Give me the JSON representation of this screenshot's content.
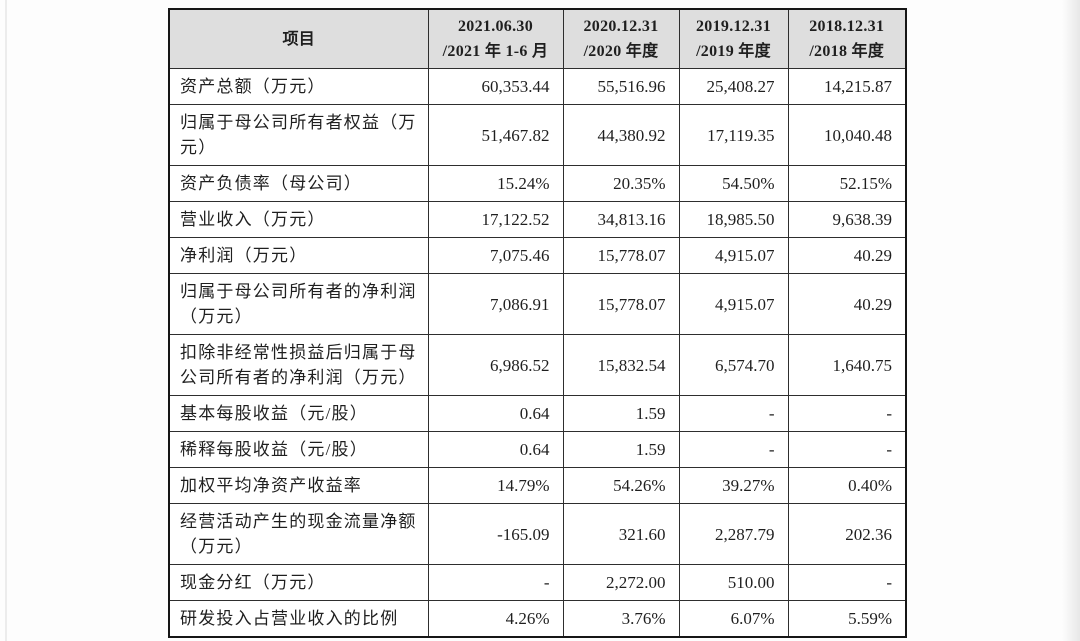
{
  "colors": {
    "header_bg": "#dedede",
    "outer_border": "#161616",
    "inner_border": "#2e2e2e",
    "text": "#1f1f1f",
    "page_bg": "#fdfdfd"
  },
  "table": {
    "header": {
      "item_label": "项目",
      "periods": [
        {
          "line1": "2021.06.30",
          "line2": "/2021 年 1-6 月"
        },
        {
          "line1": "2020.12.31",
          "line2": "/2020 年度"
        },
        {
          "line1": "2019.12.31",
          "line2": "/2019 年度"
        },
        {
          "line1": "2018.12.31",
          "line2": "/2018 年度"
        }
      ]
    },
    "rows": [
      {
        "label": "资产总额（万元）",
        "values": [
          "60,353.44",
          "55,516.96",
          "25,408.27",
          "14,215.87"
        ]
      },
      {
        "label": "归属于母公司所有者权益（万\n元）",
        "values": [
          "51,467.82",
          "44,380.92",
          "17,119.35",
          "10,040.48"
        ]
      },
      {
        "label": "资产负债率（母公司）",
        "values": [
          "15.24%",
          "20.35%",
          "54.50%",
          "52.15%"
        ]
      },
      {
        "label": "营业收入（万元）",
        "values": [
          "17,122.52",
          "34,813.16",
          "18,985.50",
          "9,638.39"
        ]
      },
      {
        "label": "净利润（万元）",
        "values": [
          "7,075.46",
          "15,778.07",
          "4,915.07",
          "40.29"
        ]
      },
      {
        "label": "归属于母公司所有者的净利润\n（万元）",
        "values": [
          "7,086.91",
          "15,778.07",
          "4,915.07",
          "40.29"
        ]
      },
      {
        "label": "扣除非经常性损益后归属于母\n公司所有者的净利润（万元）",
        "values": [
          "6,986.52",
          "15,832.54",
          "6,574.70",
          "1,640.75"
        ]
      },
      {
        "label": "基本每股收益（元/股）",
        "values": [
          "0.64",
          "1.59",
          "-",
          "-"
        ]
      },
      {
        "label": "稀释每股收益（元/股）",
        "values": [
          "0.64",
          "1.59",
          "-",
          "-"
        ]
      },
      {
        "label": "加权平均净资产收益率",
        "values": [
          "14.79%",
          "54.26%",
          "39.27%",
          "0.40%"
        ]
      },
      {
        "label": "经营活动产生的现金流量净额\n（万元）",
        "values": [
          "-165.09",
          "321.60",
          "2,287.79",
          "202.36"
        ]
      },
      {
        "label": "现金分红（万元）",
        "values": [
          "-",
          "2,272.00",
          "510.00",
          "-"
        ]
      },
      {
        "label": "研发投入占营业收入的比例",
        "values": [
          "4.26%",
          "3.76%",
          "6.07%",
          "5.59%"
        ]
      }
    ]
  }
}
